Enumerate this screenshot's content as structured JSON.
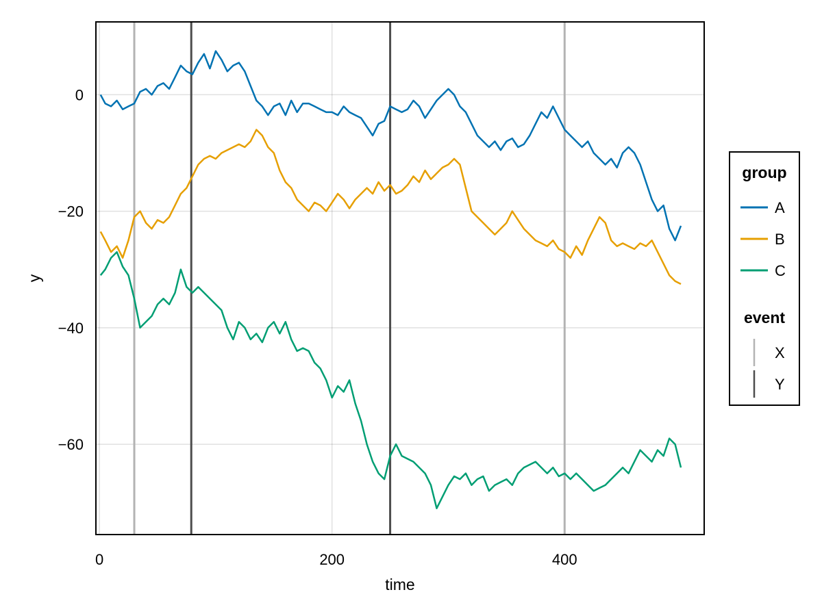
{
  "chart_data": {
    "type": "line",
    "title": "",
    "xlabel": "time",
    "ylabel": "y",
    "xlim": [
      -3,
      520
    ],
    "ylim": [
      -75.5,
      12.5
    ],
    "xticks": [
      0,
      200,
      400
    ],
    "yticks": [
      0,
      -20,
      -40,
      -60
    ],
    "ytick_labels": [
      "0",
      "−20",
      "−40",
      "−60"
    ],
    "grid": true,
    "legend_placement": "right",
    "colors": {
      "A": "#0072B2",
      "B": "#E69F00",
      "C": "#009E73",
      "X": "#B3B3B3",
      "Y": "#4D4D4D"
    },
    "series": [
      {
        "name": "A",
        "x": [
          1,
          5,
          10,
          15,
          20,
          25,
          30,
          35,
          40,
          45,
          50,
          55,
          60,
          65,
          70,
          75,
          80,
          85,
          90,
          95,
          100,
          105,
          110,
          115,
          120,
          125,
          130,
          135,
          140,
          145,
          150,
          155,
          160,
          165,
          170,
          175,
          180,
          185,
          190,
          195,
          200,
          205,
          210,
          215,
          220,
          225,
          230,
          235,
          240,
          245,
          250,
          255,
          260,
          265,
          270,
          275,
          280,
          285,
          290,
          295,
          300,
          305,
          310,
          315,
          320,
          325,
          330,
          335,
          340,
          345,
          350,
          355,
          360,
          365,
          370,
          375,
          380,
          385,
          390,
          395,
          400,
          405,
          410,
          415,
          420,
          425,
          430,
          435,
          440,
          445,
          450,
          455,
          460,
          465,
          470,
          475,
          480,
          485,
          490,
          495,
          500
        ],
        "values": [
          0,
          -1.5,
          -2,
          -1,
          -2.5,
          -2,
          -1.5,
          0.5,
          1,
          0,
          1.5,
          2,
          1,
          3,
          5,
          4,
          3.5,
          5.5,
          7,
          4.5,
          7.5,
          6,
          4,
          5,
          5.5,
          4,
          1.5,
          -1,
          -2,
          -3.5,
          -2,
          -1.5,
          -3.5,
          -1,
          -3,
          -1.5,
          -1.5,
          -2,
          -2.5,
          -3,
          -3,
          -3.5,
          -2,
          -3,
          -3.5,
          -4,
          -5.5,
          -7,
          -5,
          -4.5,
          -2,
          -2.5,
          -3,
          -2.5,
          -1,
          -2,
          -4,
          -2.5,
          -1,
          0,
          1,
          0,
          -2,
          -3,
          -5,
          -7,
          -8,
          -9,
          -8,
          -9.5,
          -8,
          -7.5,
          -9,
          -8.5,
          -7,
          -5,
          -3,
          -4,
          -2,
          -4,
          -6,
          -7,
          -8,
          -9,
          -8,
          -10,
          -11,
          -12,
          -11,
          -12.5,
          -10,
          -9,
          -10,
          -12,
          -15,
          -18,
          -20,
          -19,
          -23,
          -25,
          -22.5
        ]
      },
      {
        "name": "B",
        "x": [
          1,
          5,
          10,
          15,
          20,
          25,
          30,
          35,
          40,
          45,
          50,
          55,
          60,
          65,
          70,
          75,
          80,
          85,
          90,
          95,
          100,
          105,
          110,
          115,
          120,
          125,
          130,
          135,
          140,
          145,
          150,
          155,
          160,
          165,
          170,
          175,
          180,
          185,
          190,
          195,
          200,
          205,
          210,
          215,
          220,
          225,
          230,
          235,
          240,
          245,
          250,
          255,
          260,
          265,
          270,
          275,
          280,
          285,
          290,
          295,
          300,
          305,
          310,
          315,
          320,
          325,
          330,
          335,
          340,
          345,
          350,
          355,
          360,
          365,
          370,
          375,
          380,
          385,
          390,
          395,
          400,
          405,
          410,
          415,
          420,
          425,
          430,
          435,
          440,
          445,
          450,
          455,
          460,
          465,
          470,
          475,
          480,
          485,
          490,
          495,
          500
        ],
        "values": [
          -23.5,
          -25,
          -27,
          -26,
          -28,
          -25,
          -21,
          -20,
          -22,
          -23,
          -21.5,
          -22,
          -21,
          -19,
          -17,
          -16,
          -14,
          -12,
          -11,
          -10.5,
          -11,
          -10,
          -9.5,
          -9,
          -8.5,
          -9,
          -8,
          -6,
          -7,
          -9,
          -10,
          -13,
          -15,
          -16,
          -18,
          -19,
          -20,
          -18.5,
          -19,
          -20,
          -18.5,
          -17,
          -18,
          -19.5,
          -18,
          -17,
          -16,
          -17,
          -15,
          -16.5,
          -15.5,
          -17,
          -16.5,
          -15.5,
          -14,
          -15,
          -13,
          -14.5,
          -13.5,
          -12.5,
          -12,
          -11,
          -12,
          -16,
          -20,
          -21,
          -22,
          -23,
          -24,
          -23,
          -22,
          -20,
          -21.5,
          -23,
          -24,
          -25,
          -25.5,
          -26,
          -25,
          -26.5,
          -27,
          -28,
          -26,
          -27.5,
          -25,
          -23,
          -21,
          -22,
          -25,
          -26,
          -25.5,
          -26,
          -26.5,
          -25.5,
          -26,
          -25,
          -27,
          -29,
          -31,
          -32,
          -32.5
        ]
      },
      {
        "name": "C",
        "x": [
          1,
          5,
          10,
          15,
          20,
          25,
          30,
          35,
          40,
          45,
          50,
          55,
          60,
          65,
          70,
          75,
          80,
          85,
          90,
          95,
          100,
          105,
          110,
          115,
          120,
          125,
          130,
          135,
          140,
          145,
          150,
          155,
          160,
          165,
          170,
          175,
          180,
          185,
          190,
          195,
          200,
          205,
          210,
          215,
          220,
          225,
          230,
          235,
          240,
          245,
          250,
          255,
          260,
          265,
          270,
          275,
          280,
          285,
          290,
          295,
          300,
          305,
          310,
          315,
          320,
          325,
          330,
          335,
          340,
          345,
          350,
          355,
          360,
          365,
          370,
          375,
          380,
          385,
          390,
          395,
          400,
          405,
          410,
          415,
          420,
          425,
          430,
          435,
          440,
          445,
          450,
          455,
          460,
          465,
          470,
          475,
          480,
          485,
          490,
          495,
          500
        ],
        "values": [
          -31,
          -30,
          -28,
          -27,
          -29.5,
          -31,
          -35,
          -40,
          -39,
          -38,
          -36,
          -35,
          -36,
          -34,
          -30,
          -33,
          -34,
          -33,
          -34,
          -35,
          -36,
          -37,
          -40,
          -42,
          -39,
          -40,
          -42,
          -41,
          -42.5,
          -40,
          -39,
          -41,
          -39,
          -42,
          -44,
          -43.5,
          -44,
          -46,
          -47,
          -49,
          -52,
          -50,
          -51,
          -49,
          -53,
          -56,
          -60,
          -63,
          -65,
          -66,
          -62,
          -60,
          -62,
          -62.5,
          -63,
          -64,
          -65,
          -67,
          -71,
          -69,
          -67,
          -65.5,
          -66,
          -65,
          -67,
          -66,
          -65.5,
          -68,
          -67,
          -66.5,
          -66,
          -67,
          -65,
          -64,
          -63.5,
          -63,
          -64,
          -65,
          -64,
          -65.5,
          -65,
          -66,
          -65,
          -66,
          -67,
          -68,
          -67.5,
          -67,
          -66,
          -65,
          -64,
          -65,
          -63,
          -61,
          -62,
          -63,
          -61,
          -62,
          -59,
          -60,
          -64
        ]
      }
    ],
    "vlines": [
      {
        "event": "X",
        "x": 30
      },
      {
        "event": "Y",
        "x": 79
      },
      {
        "event": "Y",
        "x": 250
      },
      {
        "event": "X",
        "x": 400
      }
    ],
    "legend": {
      "group_title": "group",
      "group_entries": [
        "A",
        "B",
        "C"
      ],
      "event_title": "event",
      "event_entries": [
        "X",
        "Y"
      ]
    }
  }
}
